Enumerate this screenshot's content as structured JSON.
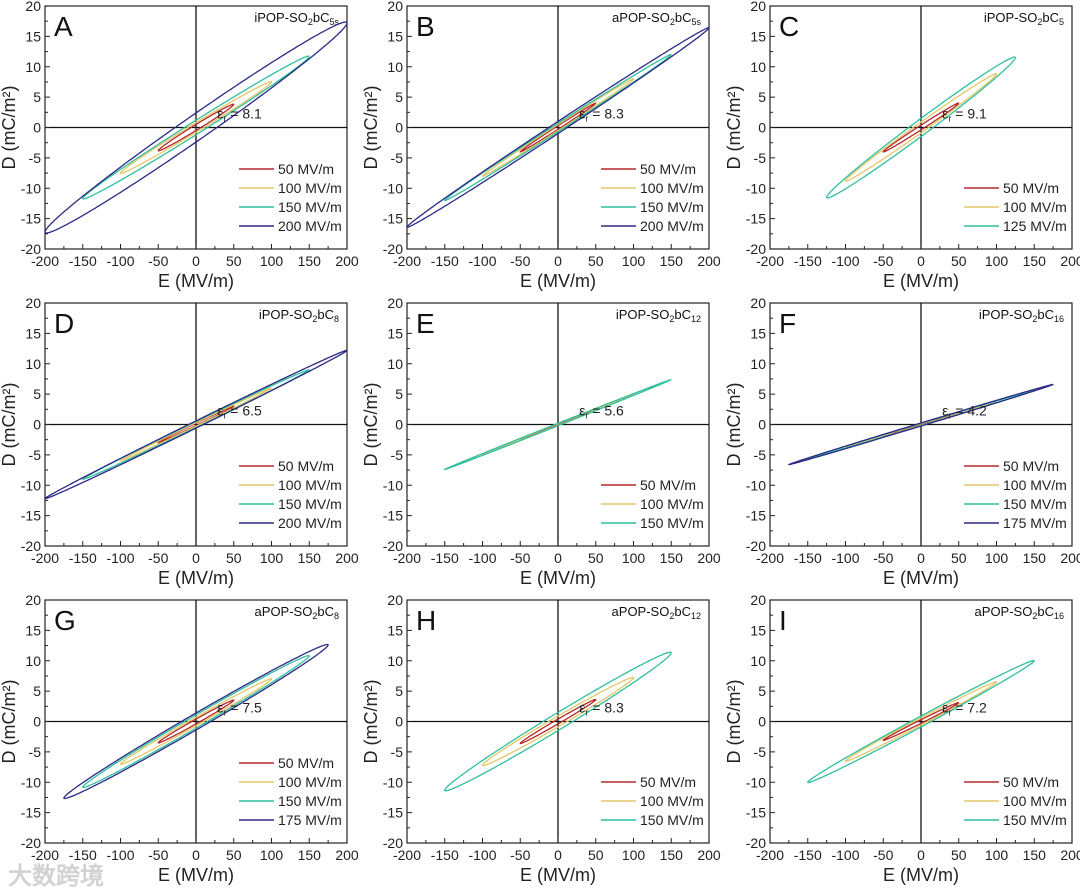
{
  "watermark": "大数跨境",
  "chart_data": [
    {
      "type": "line",
      "letter": "A",
      "title": [
        {
          "t": "iPOP-SO"
        },
        {
          "t": "2",
          "sub": true
        },
        {
          "t": "bC"
        },
        {
          "t": "5s",
          "sub": true
        }
      ],
      "eps_label": "ε",
      "eps_sub": "r",
      "eps_value": " = 8.1",
      "xlabel": "E (MV/m)",
      "ylabel": "D (mC/m²)",
      "xlim": [
        -200,
        200
      ],
      "ylim": [
        -20,
        20
      ],
      "xticks": [
        -200,
        -150,
        -100,
        -50,
        0,
        50,
        100,
        150,
        200
      ],
      "yticks": [
        -20,
        -15,
        -10,
        -5,
        0,
        5,
        10,
        15,
        20
      ],
      "legend": "bottom-right",
      "series": [
        {
          "name": "50 MV/m",
          "color": "#b5282a",
          "Emax": 50,
          "Dmax": 3.8,
          "Dr": 0.5
        },
        {
          "name": "100 MV/m",
          "color": "#e3c768",
          "Emax": 100,
          "Dmax": 7.5,
          "Dr": 0.8
        },
        {
          "name": "150 MV/m",
          "color": "#2fbf9f",
          "Emax": 150,
          "Dmax": 11.7,
          "Dr": 1.2
        },
        {
          "name": "200 MV/m",
          "color": "#2b2a86",
          "Emax": 200,
          "Dmax": 17.2,
          "Dr": 2.4
        }
      ]
    },
    {
      "type": "line",
      "letter": "B",
      "title": [
        {
          "t": "aPOP-SO"
        },
        {
          "t": "2",
          "sub": true
        },
        {
          "t": "bC"
        },
        {
          "t": "5s",
          "sub": true
        }
      ],
      "eps_label": "ε",
      "eps_sub": "r",
      "eps_value": " = 8.3",
      "xlabel": "E (MV/m)",
      "ylabel": "D (mC/m²)",
      "xlim": [
        -200,
        200
      ],
      "ylim": [
        -20,
        20
      ],
      "xticks": [
        -200,
        -150,
        -100,
        -50,
        0,
        50,
        100,
        150,
        200
      ],
      "yticks": [
        -20,
        -15,
        -10,
        -5,
        0,
        5,
        10,
        15,
        20
      ],
      "legend": "bottom-right",
      "series": [
        {
          "name": "50 MV/m",
          "color": "#b5282a",
          "Emax": 50,
          "Dmax": 4,
          "Dr": 0.3
        },
        {
          "name": "100 MV/m",
          "color": "#e3c768",
          "Emax": 100,
          "Dmax": 8,
          "Dr": 0.5
        },
        {
          "name": "150 MV/m",
          "color": "#2fbf9f",
          "Emax": 150,
          "Dmax": 12,
          "Dr": 0.7
        },
        {
          "name": "200 MV/m",
          "color": "#2b2a86",
          "Emax": 200,
          "Dmax": 16.4,
          "Dr": 1.0
        }
      ]
    },
    {
      "type": "line",
      "letter": "C",
      "title": [
        {
          "t": "iPOP-SO"
        },
        {
          "t": "2",
          "sub": true
        },
        {
          "t": "bC"
        },
        {
          "t": "5",
          "sub": true
        }
      ],
      "eps_label": "ε",
      "eps_sub": "r",
      "eps_value": " = 9.1",
      "xlabel": "E (MV/m)",
      "ylabel": "D (mC/m²)",
      "xlim": [
        -200,
        200
      ],
      "ylim": [
        -20,
        20
      ],
      "xticks": [
        -200,
        -150,
        -100,
        -50,
        0,
        50,
        100,
        150,
        200
      ],
      "yticks": [
        -20,
        -15,
        -10,
        -5,
        0,
        5,
        10,
        15,
        20
      ],
      "legend": "bottom-right",
      "series": [
        {
          "name": "50 MV/m",
          "color": "#b5282a",
          "Emax": 50,
          "Dmax": 4,
          "Dr": 0.4
        },
        {
          "name": "100 MV/m",
          "color": "#e3c768",
          "Emax": 100,
          "Dmax": 8.8,
          "Dr": 0.9
        },
        {
          "name": "125 MV/m",
          "color": "#2fbf9f",
          "Emax": 125,
          "Dmax": 11.5,
          "Dr": 1.5
        }
      ]
    },
    {
      "type": "line",
      "letter": "D",
      "title": [
        {
          "t": "iPOP-SO"
        },
        {
          "t": "2",
          "sub": true
        },
        {
          "t": "bC"
        },
        {
          "t": "8",
          "sub": true
        }
      ],
      "eps_label": "ε",
      "eps_sub": "r",
      "eps_value": " = 6.5",
      "xlabel": "E (MV/m)",
      "ylabel": "D (mC/m²)",
      "xlim": [
        -200,
        200
      ],
      "ylim": [
        -20,
        20
      ],
      "xticks": [
        -200,
        -150,
        -100,
        -50,
        0,
        50,
        100,
        150,
        200
      ],
      "yticks": [
        -20,
        -15,
        -10,
        -5,
        0,
        5,
        10,
        15,
        20
      ],
      "legend": "bottom-right",
      "series": [
        {
          "name": "50 MV/m",
          "color": "#b5282a",
          "Emax": 50,
          "Dmax": 3,
          "Dr": 0.2
        },
        {
          "name": "100 MV/m",
          "color": "#e3c768",
          "Emax": 100,
          "Dmax": 6,
          "Dr": 0.3
        },
        {
          "name": "150 MV/m",
          "color": "#2fbf9f",
          "Emax": 150,
          "Dmax": 9,
          "Dr": 0.5
        },
        {
          "name": "200 MV/m",
          "color": "#2b2a86",
          "Emax": 200,
          "Dmax": 12.2,
          "Dr": 0.6
        }
      ]
    },
    {
      "type": "line",
      "letter": "E",
      "title": [
        {
          "t": "iPOP-SO"
        },
        {
          "t": "2",
          "sub": true
        },
        {
          "t": "bC"
        },
        {
          "t": "12",
          "sub": true
        }
      ],
      "eps_label": "ε",
      "eps_sub": "r",
      "eps_value": " = 5.6",
      "xlabel": "E (MV/m)",
      "ylabel": "D (mC/m²)",
      "xlim": [
        -200,
        200
      ],
      "ylim": [
        -20,
        20
      ],
      "xticks": [
        -200,
        -150,
        -100,
        -50,
        0,
        50,
        100,
        150,
        200
      ],
      "yticks": [
        -20,
        -15,
        -10,
        -5,
        0,
        5,
        10,
        15,
        20
      ],
      "legend": "bottom-right",
      "series": [
        {
          "name": "50 MV/m",
          "color": "#b5282a",
          "Emax": 50,
          "Dmax": 2.5,
          "Dr": 0.1
        },
        {
          "name": "100 MV/m",
          "color": "#e3c768",
          "Emax": 100,
          "Dmax": 5,
          "Dr": 0.15
        },
        {
          "name": "150 MV/m",
          "color": "#2fbf9f",
          "Emax": 150,
          "Dmax": 7.4,
          "Dr": 0.2
        }
      ]
    },
    {
      "type": "line",
      "letter": "F",
      "title": [
        {
          "t": "iPOP-SO"
        },
        {
          "t": "2",
          "sub": true
        },
        {
          "t": "bC"
        },
        {
          "t": "16",
          "sub": true
        }
      ],
      "eps_label": "ε",
      "eps_sub": "r",
      "eps_value": " = 4.2",
      "xlabel": "E (MV/m)",
      "ylabel": "D (mC/m²)",
      "xlim": [
        -200,
        200
      ],
      "ylim": [
        -20,
        20
      ],
      "xticks": [
        -200,
        -150,
        -100,
        -50,
        0,
        50,
        100,
        150,
        200
      ],
      "yticks": [
        -20,
        -15,
        -10,
        -5,
        0,
        5,
        10,
        15,
        20
      ],
      "legend": "bottom-right",
      "series": [
        {
          "name": "50 MV/m",
          "color": "#b5282a",
          "Emax": 50,
          "Dmax": 1.9,
          "Dr": 0.1
        },
        {
          "name": "100 MV/m",
          "color": "#e3c768",
          "Emax": 100,
          "Dmax": 3.8,
          "Dr": 0.15
        },
        {
          "name": "150 MV/m",
          "color": "#2fbf9f",
          "Emax": 150,
          "Dmax": 5.6,
          "Dr": 0.2
        },
        {
          "name": "175 MV/m",
          "color": "#2b2a86",
          "Emax": 175,
          "Dmax": 6.6,
          "Dr": 0.25
        }
      ]
    },
    {
      "type": "line",
      "letter": "G",
      "title": [
        {
          "t": "aPOP-SO"
        },
        {
          "t": "2",
          "sub": true
        },
        {
          "t": "bC"
        },
        {
          "t": "8",
          "sub": true
        }
      ],
      "eps_label": "ε",
      "eps_sub": "r",
      "eps_value": " = 7.5",
      "xlabel": "E (MV/m)",
      "ylabel": "D (mC/m²)",
      "xlim": [
        -200,
        200
      ],
      "ylim": [
        -20,
        20
      ],
      "xticks": [
        -200,
        -150,
        -100,
        -50,
        0,
        50,
        100,
        150,
        200
      ],
      "yticks": [
        -20,
        -15,
        -10,
        -5,
        0,
        5,
        10,
        15,
        20
      ],
      "legend": "bottom-right",
      "series": [
        {
          "name": "50 MV/m",
          "color": "#b5282a",
          "Emax": 50,
          "Dmax": 3.5,
          "Dr": 0.4
        },
        {
          "name": "100 MV/m",
          "color": "#e3c768",
          "Emax": 100,
          "Dmax": 7,
          "Dr": 0.7
        },
        {
          "name": "150 MV/m",
          "color": "#2fbf9f",
          "Emax": 150,
          "Dmax": 10.8,
          "Dr": 1.1
        },
        {
          "name": "175 MV/m",
          "color": "#2b2a86",
          "Emax": 175,
          "Dmax": 12.6,
          "Dr": 1.4
        }
      ]
    },
    {
      "type": "line",
      "letter": "H",
      "title": [
        {
          "t": "aPOP-SO"
        },
        {
          "t": "2",
          "sub": true
        },
        {
          "t": "bC"
        },
        {
          "t": "12",
          "sub": true
        }
      ],
      "eps_label": "ε",
      "eps_sub": "r",
      "eps_value": " = 8.3",
      "xlabel": "E (MV/m)",
      "ylabel": "D (mC/m²)",
      "xlim": [
        -200,
        200
      ],
      "ylim": [
        -20,
        20
      ],
      "xticks": [
        -200,
        -150,
        -100,
        -50,
        0,
        50,
        100,
        150,
        200
      ],
      "yticks": [
        -20,
        -15,
        -10,
        -5,
        0,
        5,
        10,
        15,
        20
      ],
      "legend": "bottom-right",
      "series": [
        {
          "name": "50 MV/m",
          "color": "#b5282a",
          "Emax": 50,
          "Dmax": 3.6,
          "Dr": 0.4
        },
        {
          "name": "100 MV/m",
          "color": "#e3c768",
          "Emax": 100,
          "Dmax": 7.2,
          "Dr": 0.9
        },
        {
          "name": "150 MV/m",
          "color": "#2fbf9f",
          "Emax": 150,
          "Dmax": 11.3,
          "Dr": 1.5
        }
      ]
    },
    {
      "type": "line",
      "letter": "I",
      "title": [
        {
          "t": "aPOP-SO"
        },
        {
          "t": "2",
          "sub": true
        },
        {
          "t": "bC"
        },
        {
          "t": "16",
          "sub": true
        }
      ],
      "eps_label": "ε",
      "eps_sub": "r",
      "eps_value": " = 7.2",
      "xlabel": "E (MV/m)",
      "ylabel": "D (mC/m²)",
      "xlim": [
        -200,
        200
      ],
      "ylim": [
        -20,
        20
      ],
      "xticks": [
        -200,
        -150,
        -100,
        -50,
        0,
        50,
        100,
        150,
        200
      ],
      "yticks": [
        -20,
        -15,
        -10,
        -5,
        0,
        5,
        10,
        15,
        20
      ],
      "legend": "bottom-right",
      "series": [
        {
          "name": "50 MV/m",
          "color": "#b5282a",
          "Emax": 50,
          "Dmax": 3.1,
          "Dr": 0.3
        },
        {
          "name": "100 MV/m",
          "color": "#e3c768",
          "Emax": 100,
          "Dmax": 6.5,
          "Dr": 0.6
        },
        {
          "name": "150 MV/m",
          "color": "#2fbf9f",
          "Emax": 150,
          "Dmax": 10,
          "Dr": 0.9
        }
      ]
    }
  ]
}
